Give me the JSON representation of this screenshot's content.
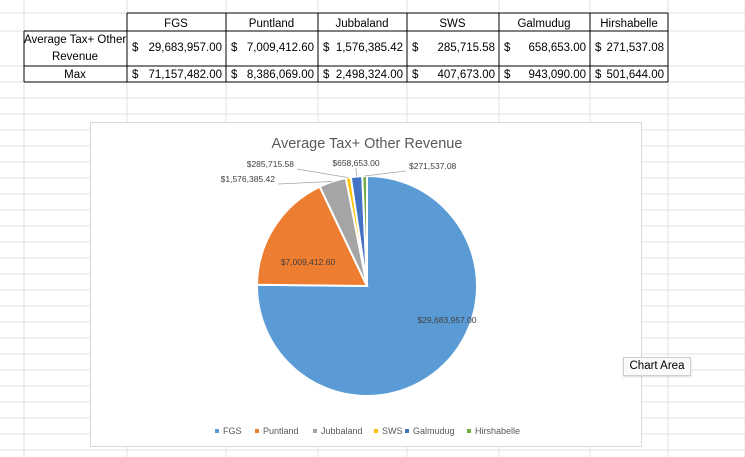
{
  "table": {
    "headers": [
      "FGS",
      "Puntland",
      "Jubbaland",
      "SWS",
      "Galmudug",
      "Hirshabelle"
    ],
    "rows": [
      {
        "label_line1": "Average Tax+ Other",
        "label_line2": "Revenue",
        "currency": "$",
        "values": [
          "29,683,957.00",
          "7,009,412.60",
          "1,576,385.42",
          "285,715.58",
          "658,653.00",
          "271,537.08"
        ]
      },
      {
        "label_line1": "Max",
        "label_line2": "",
        "currency": "$",
        "values": [
          "71,157,482.00",
          "8,386,069.00",
          "2,498,324.00",
          "407,673.00",
          "943,090.00",
          "501,644.00"
        ]
      }
    ]
  },
  "chart_data": {
    "type": "pie",
    "title": "Average Tax+ Other Revenue",
    "categories": [
      "FGS",
      "Puntland",
      "Jubbaland",
      "SWS",
      "Galmudug",
      "Hirshabelle"
    ],
    "values": [
      29683957.0,
      7009412.6,
      1576385.42,
      285715.58,
      658653.0,
      271537.08
    ],
    "data_labels": [
      "$29,683,957.00",
      "$7,009,412.60",
      "$1,576,385.42",
      "$285,715.58",
      "$658,653.00",
      "$271,537.08"
    ],
    "colors": [
      "#5b9bd5",
      "#ed7d31",
      "#a5a5a5",
      "#ffc000",
      "#4472c4",
      "#70ad47"
    ],
    "legend_position": "bottom"
  },
  "tooltip": {
    "text": "Chart Area"
  }
}
